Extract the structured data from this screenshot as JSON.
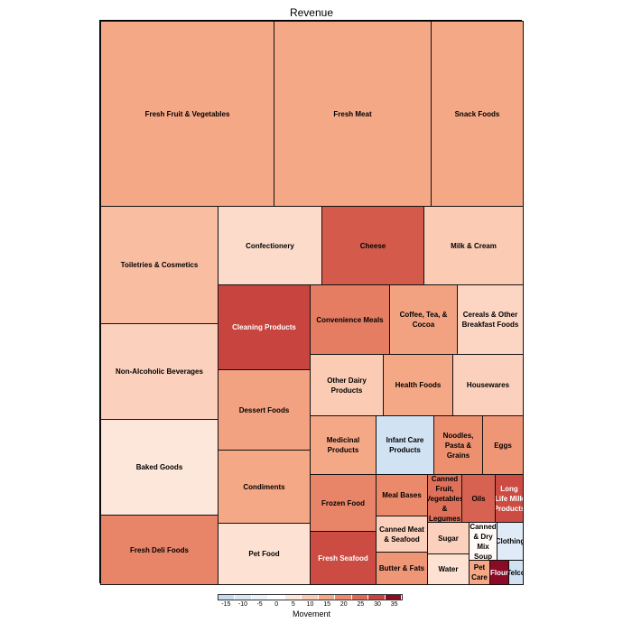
{
  "chart_data": {
    "type": "treemap",
    "title": "Revenue",
    "size_variable": "Revenue (share %, approx.)",
    "color_variable": "Movement",
    "legend": {
      "title": "Movement",
      "ticks": [
        "-15",
        "-10",
        "-5",
        "0",
        "5",
        "10",
        "15",
        "20",
        "25",
        "30",
        "35"
      ],
      "colors": [
        "#c6dbef",
        "#d9e7f5",
        "#eaf2fa",
        "#ffffff",
        "#fde6da",
        "#fbcbb4",
        "#f5a886",
        "#eb8a6b",
        "#dc6a55",
        "#c8443f",
        "#8b0a26"
      ],
      "placement": "bottom"
    },
    "cells": [
      {
        "name": "Fresh Fruit & Vegetables",
        "revenue_share": 13.5,
        "movement": 15
      },
      {
        "name": "Fresh Meat",
        "revenue_share": 12.2,
        "movement": 15
      },
      {
        "name": "Snack Foods",
        "revenue_share": 7.2,
        "movement": 15
      },
      {
        "name": "Toiletries & Cosmetics",
        "revenue_share": 5.8,
        "movement": 12
      },
      {
        "name": "Non-Alcoholic Beverages",
        "revenue_share": 4.7,
        "movement": 9
      },
      {
        "name": "Baked Goods",
        "revenue_share": 4.7,
        "movement": 5
      },
      {
        "name": "Fresh Deli Foods",
        "revenue_share": 3.4,
        "movement": 21
      },
      {
        "name": "Confectionery",
        "revenue_share": 3.4,
        "movement": 7
      },
      {
        "name": "Cheese",
        "revenue_share": 3.4,
        "movement": 27
      },
      {
        "name": "Milk & Cream",
        "revenue_share": 3.3,
        "movement": 10
      },
      {
        "name": "Cleaning Products",
        "revenue_share": 3.3,
        "movement": 30
      },
      {
        "name": "Dessert Foods",
        "revenue_share": 3.1,
        "movement": 16
      },
      {
        "name": "Condiments",
        "revenue_share": 2.8,
        "movement": 15
      },
      {
        "name": "Pet Food",
        "revenue_share": 2.4,
        "movement": 6
      },
      {
        "name": "Convenience Meals",
        "revenue_share": 2.3,
        "movement": 22
      },
      {
        "name": "Coffee, Tea, & Cocoa",
        "revenue_share": 2.0,
        "movement": 16
      },
      {
        "name": "Cereals & Other Breakfast Foods",
        "revenue_share": 1.9,
        "movement": 8
      },
      {
        "name": "Other Dairy Products",
        "revenue_share": 1.9,
        "movement": 10
      },
      {
        "name": "Health Foods",
        "revenue_share": 1.8,
        "movement": 15
      },
      {
        "name": "Housewares",
        "revenue_share": 1.8,
        "movement": 9
      },
      {
        "name": "Medicinal Products",
        "revenue_share": 1.6,
        "movement": 15
      },
      {
        "name": "Infant Care Products",
        "revenue_share": 1.4,
        "movement": -12
      },
      {
        "name": "Noodles, Pasta & Grains",
        "revenue_share": 1.2,
        "movement": 19
      },
      {
        "name": "Eggs",
        "revenue_share": 1.0,
        "movement": 18
      },
      {
        "name": "Frozen Food",
        "revenue_share": 1.6,
        "movement": 21
      },
      {
        "name": "Fresh Seafood",
        "revenue_share": 1.5,
        "movement": 29
      },
      {
        "name": "Meal Bases",
        "revenue_share": 0.9,
        "movement": 20
      },
      {
        "name": "Canned Meat & Seafood",
        "revenue_share": 0.8,
        "movement": 9
      },
      {
        "name": "Butter & Fats",
        "revenue_share": 0.7,
        "movement": 18
      },
      {
        "name": "Canned Fruit, Vegetables & Legumes",
        "revenue_share": 0.7,
        "movement": 24
      },
      {
        "name": "Oils",
        "revenue_share": 0.7,
        "movement": 26
      },
      {
        "name": "Long Life Milk Products",
        "revenue_share": 0.6,
        "movement": 29
      },
      {
        "name": "Sugar",
        "revenue_share": 0.55,
        "movement": 9
      },
      {
        "name": "Water",
        "revenue_share": 0.54,
        "movement": 6
      },
      {
        "name": "Canned & Dry Mix Soup",
        "revenue_share": 0.45,
        "movement": 1
      },
      {
        "name": "Clothing",
        "revenue_share": 0.42,
        "movement": -8
      },
      {
        "name": "Pet Care",
        "revenue_share": 0.21,
        "movement": 15
      },
      {
        "name": "Flour",
        "revenue_share": 0.19,
        "movement": 35
      },
      {
        "name": "Telco",
        "revenue_share": 0.15,
        "movement": -12
      }
    ]
  }
}
